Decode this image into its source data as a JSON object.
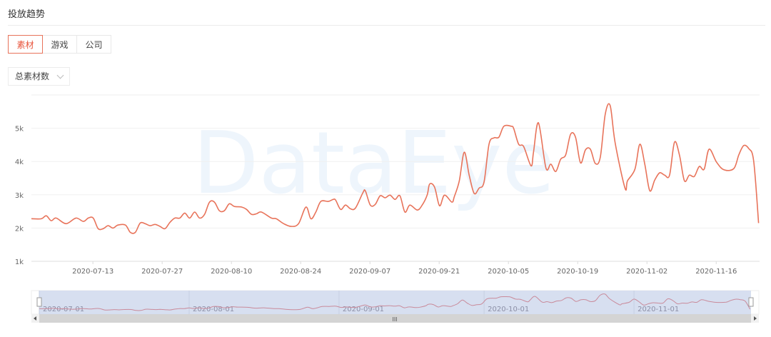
{
  "header": {
    "title": "投放趋势"
  },
  "tabs": [
    {
      "label": "素材",
      "active": true
    },
    {
      "label": "游戏",
      "active": false
    },
    {
      "label": "公司",
      "active": false
    }
  ],
  "metric_select": {
    "value": "总素材数"
  },
  "watermark": "DataEye",
  "colors": {
    "line": "#e8735a",
    "accent": "#e8533a",
    "zoom_fill": "#d3dcee"
  },
  "chart_data": {
    "type": "line",
    "title": "",
    "xlabel": "",
    "ylabel": "",
    "x_start_date": "2020-07-01",
    "x_unit": "days since 2020-07-01",
    "xlim": [
      0,
      147.2
    ],
    "ylim": [
      1000,
      6000
    ],
    "grid": true,
    "y_ticks": [
      1000,
      2000,
      3000,
      4000,
      5000
    ],
    "y_tick_labels": [
      "1k",
      "2k",
      "3k",
      "4k",
      "5k"
    ],
    "x_ticks": [
      12,
      26,
      40,
      54,
      68,
      82,
      96,
      110,
      124,
      138
    ],
    "x_tick_labels": [
      "2020-07-13",
      "2020-07-27",
      "2020-08-10",
      "2020-08-24",
      "2020-09-07",
      "2020-09-21",
      "2020-10-05",
      "2020-10-19",
      "2020-11-02",
      "2020-11-16"
    ],
    "series": [
      {
        "name": "总素材数",
        "points": [
          [
            0,
            2280
          ],
          [
            2,
            2280
          ],
          [
            3,
            2370
          ],
          [
            4,
            2220
          ],
          [
            5,
            2300
          ],
          [
            7,
            2130
          ],
          [
            9,
            2300
          ],
          [
            10.5,
            2200
          ],
          [
            11.5,
            2300
          ],
          [
            12.5,
            2300
          ],
          [
            13.5,
            1980
          ],
          [
            14.5,
            1980
          ],
          [
            15.5,
            2070
          ],
          [
            16.5,
            2000
          ],
          [
            17.5,
            2090
          ],
          [
            19,
            2090
          ],
          [
            20,
            1870
          ],
          [
            21,
            1870
          ],
          [
            22,
            2150
          ],
          [
            23,
            2130
          ],
          [
            24,
            2070
          ],
          [
            25,
            2110
          ],
          [
            26,
            2050
          ],
          [
            27,
            1980
          ],
          [
            28,
            2170
          ],
          [
            29,
            2300
          ],
          [
            30,
            2300
          ],
          [
            31,
            2450
          ],
          [
            32,
            2300
          ],
          [
            33,
            2480
          ],
          [
            34,
            2300
          ],
          [
            35,
            2410
          ],
          [
            36,
            2780
          ],
          [
            37,
            2780
          ],
          [
            38,
            2520
          ],
          [
            39,
            2520
          ],
          [
            40,
            2730
          ],
          [
            41,
            2650
          ],
          [
            42.5,
            2630
          ],
          [
            43.5,
            2560
          ],
          [
            44.5,
            2410
          ],
          [
            45.5,
            2430
          ],
          [
            46.5,
            2480
          ],
          [
            48.5,
            2300
          ],
          [
            49.5,
            2280
          ],
          [
            51,
            2130
          ],
          [
            52.5,
            2050
          ],
          [
            54,
            2130
          ],
          [
            55.5,
            2630
          ],
          [
            56.5,
            2280
          ],
          [
            57.5,
            2480
          ],
          [
            58.5,
            2800
          ],
          [
            60,
            2800
          ],
          [
            61,
            2860
          ],
          [
            61.5,
            2840
          ],
          [
            62.5,
            2560
          ],
          [
            63.5,
            2690
          ],
          [
            64.5,
            2580
          ],
          [
            65.5,
            2600
          ],
          [
            67,
            3060
          ],
          [
            67.5,
            3120
          ],
          [
            68.5,
            2690
          ],
          [
            69.5,
            2710
          ],
          [
            70.5,
            2970
          ],
          [
            71.5,
            2910
          ],
          [
            72.5,
            2990
          ],
          [
            73.5,
            2860
          ],
          [
            74.5,
            2970
          ],
          [
            75.5,
            2480
          ],
          [
            76.5,
            2690
          ],
          [
            78,
            2540
          ],
          [
            79,
            2690
          ],
          [
            80,
            2990
          ],
          [
            80.5,
            3320
          ],
          [
            81.5,
            3230
          ],
          [
            82.5,
            2670
          ],
          [
            83.5,
            2990
          ],
          [
            85,
            2780
          ],
          [
            85.5,
            2950
          ],
          [
            86.5,
            3420
          ],
          [
            87.5,
            4280
          ],
          [
            88.5,
            3590
          ],
          [
            89.5,
            3040
          ],
          [
            90.5,
            3200
          ],
          [
            91.5,
            3380
          ],
          [
            92.5,
            4520
          ],
          [
            93.5,
            4710
          ],
          [
            94.5,
            4730
          ],
          [
            95.5,
            5060
          ],
          [
            97,
            5060
          ],
          [
            97.5,
            4990
          ],
          [
            98.5,
            4520
          ],
          [
            99.5,
            4450
          ],
          [
            101,
            3870
          ],
          [
            101.5,
            4280
          ],
          [
            102.5,
            5160
          ],
          [
            104,
            3810
          ],
          [
            105,
            3920
          ],
          [
            106,
            3700
          ],
          [
            107,
            4070
          ],
          [
            108,
            4200
          ],
          [
            109,
            4820
          ],
          [
            110,
            4730
          ],
          [
            111,
            3960
          ],
          [
            112,
            4350
          ],
          [
            113,
            4370
          ],
          [
            114,
            3940
          ],
          [
            115,
            4130
          ],
          [
            116,
            5420
          ],
          [
            117,
            5680
          ],
          [
            118,
            4560
          ],
          [
            120,
            3200
          ],
          [
            120.5,
            3420
          ],
          [
            122,
            3770
          ],
          [
            123,
            4520
          ],
          [
            124,
            3920
          ],
          [
            125,
            3120
          ],
          [
            126,
            3440
          ],
          [
            127,
            3660
          ],
          [
            128,
            3590
          ],
          [
            129,
            3590
          ],
          [
            130,
            4580
          ],
          [
            131,
            4200
          ],
          [
            132,
            3420
          ],
          [
            133,
            3590
          ],
          [
            134,
            3550
          ],
          [
            135,
            3850
          ],
          [
            136,
            3770
          ],
          [
            137,
            4370
          ],
          [
            138.5,
            3980
          ],
          [
            140,
            3750
          ],
          [
            142,
            3790
          ],
          [
            143,
            4200
          ],
          [
            144,
            4480
          ],
          [
            145,
            4390
          ],
          [
            146,
            4020
          ],
          [
            147,
            2150
          ]
        ]
      }
    ],
    "data_zoom": {
      "range_percent": [
        0,
        100
      ],
      "labels": [
        {
          "day": 0,
          "text": "2020-07-01"
        },
        {
          "day": 31,
          "text": "2020-08-01"
        },
        {
          "day": 62,
          "text": "2020-09-01"
        },
        {
          "day": 92,
          "text": "2020-10-01"
        },
        {
          "day": 123,
          "text": "2020-11-01"
        }
      ],
      "scrollbar_grip": "III"
    },
    "legend": "none"
  }
}
